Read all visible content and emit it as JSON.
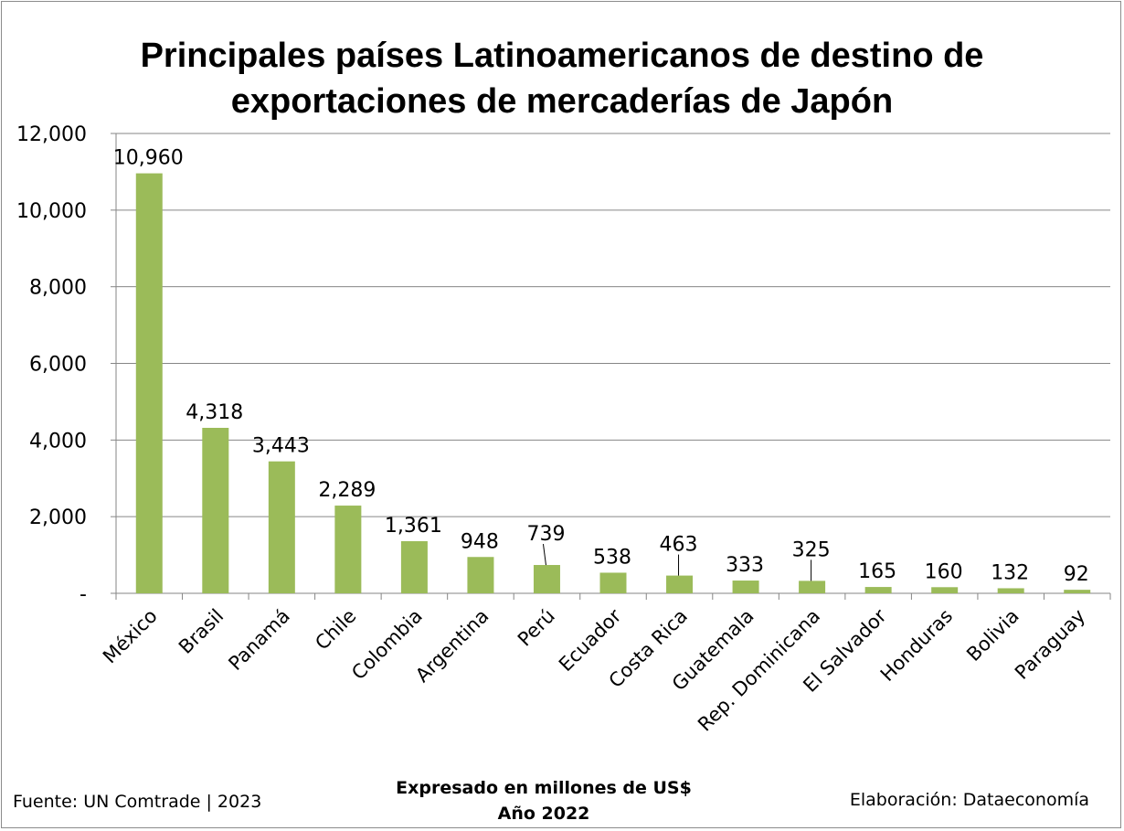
{
  "chart_data": {
    "type": "bar",
    "title": [
      "Principales países Latinoamericanos de destino de",
      "exportaciones de mercaderías de Japón"
    ],
    "categories": [
      "México",
      "Brasil",
      "Panamá",
      "Chile",
      "Colombia",
      "Argentina",
      "Perú",
      "Ecuador",
      "Costa Rica",
      "Guatemala",
      "Rep. Dominicana",
      "El Salvador",
      "Honduras",
      "Bolivia",
      "Paraguay"
    ],
    "values": [
      10960,
      4318,
      3443,
      2289,
      1361,
      948,
      739,
      538,
      463,
      333,
      325,
      165,
      160,
      132,
      92
    ],
    "data_labels": [
      "10,960",
      "4,318",
      "3,443",
      "2,289",
      "1,361",
      "948",
      "739",
      "538",
      "463",
      "333",
      "325",
      "165",
      "160",
      "132",
      "92"
    ],
    "ylim": [
      0,
      12000
    ],
    "yticks": [
      0,
      2000,
      4000,
      6000,
      8000,
      10000,
      12000
    ],
    "ytick_labels": [
      "-",
      "2,000",
      "4,000",
      "6,000",
      "8,000",
      "10,000",
      "12,000"
    ],
    "grid": true,
    "bar_color": "#9bbb59",
    "xlabel": "",
    "ylabel": ""
  },
  "footer": {
    "source": "Fuente: UN Comtrade | 2023",
    "note_line1": "Expresado en millones de US$",
    "note_line2": "Año 2022",
    "credit": "Elaboración: Dataeconomía"
  }
}
